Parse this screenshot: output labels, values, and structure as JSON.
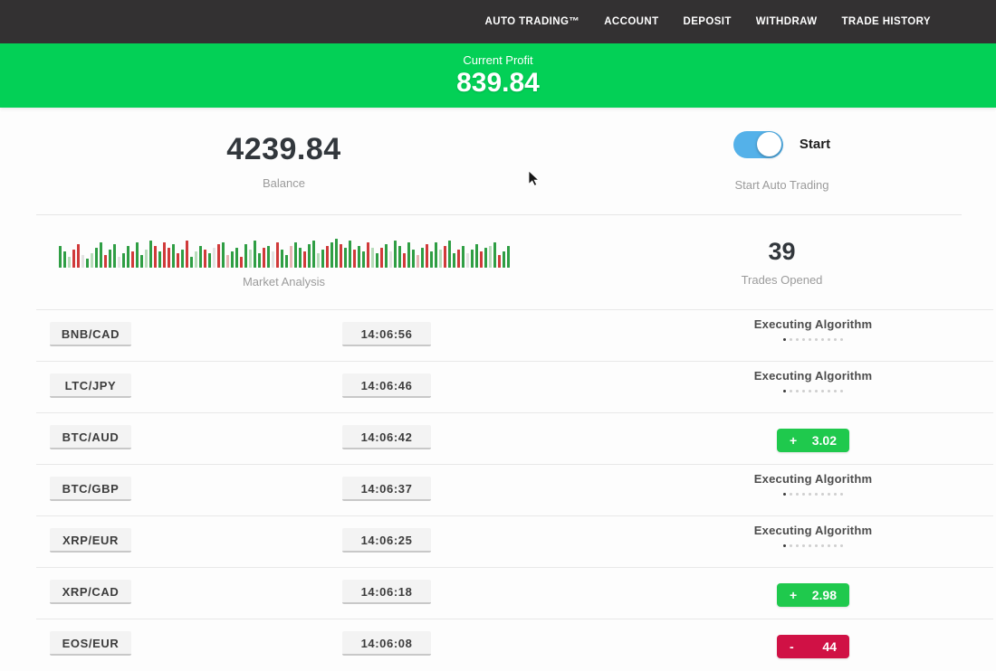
{
  "navbar": {
    "items": [
      {
        "label": "AUTO TRADING™"
      },
      {
        "label": "ACCOUNT"
      },
      {
        "label": "DEPOSIT"
      },
      {
        "label": "WITHDRAW"
      },
      {
        "label": "TRADE HISTORY"
      }
    ]
  },
  "profit_banner": {
    "label": "Current Profit",
    "value": "839.84"
  },
  "stats": {
    "balance": {
      "value": "4239.84",
      "label": "Balance"
    },
    "auto_trading": {
      "toggle_label": "Start",
      "label": "Start Auto Trading",
      "enabled": true
    },
    "market_analysis": {
      "label": "Market Analysis",
      "bars": [
        "g24",
        "g18",
        "l12",
        "r20",
        "r26",
        "e14",
        "g10",
        "l16",
        "g22",
        "g28",
        "r14",
        "g20",
        "g26",
        "e12",
        "g16",
        "g24",
        "r18",
        "g28",
        "g14",
        "l20",
        "g30",
        "r24",
        "g18",
        "r28",
        "r22",
        "g26",
        "r16",
        "g20",
        "r30",
        "g12",
        "l18",
        "g24",
        "r20",
        "g16",
        "e22",
        "r26",
        "g28",
        "p14",
        "g18",
        "g22",
        "r12",
        "g26",
        "l20",
        "g30",
        "g16",
        "r22",
        "g24",
        "e18",
        "r28",
        "g20",
        "g14",
        "p24",
        "g28",
        "g22",
        "r18",
        "g26",
        "g30",
        "l16",
        "g20",
        "r24",
        "g28",
        "g32",
        "r26",
        "g22",
        "g30",
        "r20",
        "g24",
        "g18",
        "r28",
        "l22",
        "g16",
        "r22",
        "g26",
        "e18",
        "g30",
        "g24",
        "r16",
        "g28",
        "g20",
        "p14",
        "g22",
        "r26",
        "g18",
        "g28",
        "l20",
        "r24",
        "g30",
        "g16",
        "r20",
        "g24",
        "e16",
        "g20",
        "g26",
        "r18",
        "g22",
        "l24",
        "g28",
        "r14",
        "g18",
        "g24"
      ]
    },
    "trades_opened": {
      "value": "39",
      "label": "Trades Opened"
    }
  },
  "status_meta": {
    "executing_label": "Executing Algorithm",
    "loader_dots": 10
  },
  "trades": [
    {
      "pair": "BNB/CAD",
      "time": "14:06:56",
      "status": "executing"
    },
    {
      "pair": "LTC/JPY",
      "time": "14:06:46",
      "status": "executing"
    },
    {
      "pair": "BTC/AUD",
      "time": "14:06:42",
      "status": "profit",
      "sign": "+",
      "amount": "3.02"
    },
    {
      "pair": "BTC/GBP",
      "time": "14:06:37",
      "status": "executing"
    },
    {
      "pair": "XRP/EUR",
      "time": "14:06:25",
      "status": "executing"
    },
    {
      "pair": "XRP/CAD",
      "time": "14:06:18",
      "status": "profit",
      "sign": "+",
      "amount": "2.98"
    },
    {
      "pair": "EOS/EUR",
      "time": "14:06:08",
      "status": "loss",
      "sign": "-",
      "amount": "44"
    }
  ],
  "colors": {
    "navbar_bg": "#333132",
    "banner_green": "#03d056",
    "profit_green": "#1fc94d",
    "loss_red": "#d01145",
    "toggle_blue": "#54b1e9",
    "bar_green": "#2f9e44",
    "bar_red": "#d03a3a",
    "bar_light_green": "#b7dcba",
    "bar_light_red": "#e6b3b3",
    "bar_pale": "#e2e2e2"
  }
}
